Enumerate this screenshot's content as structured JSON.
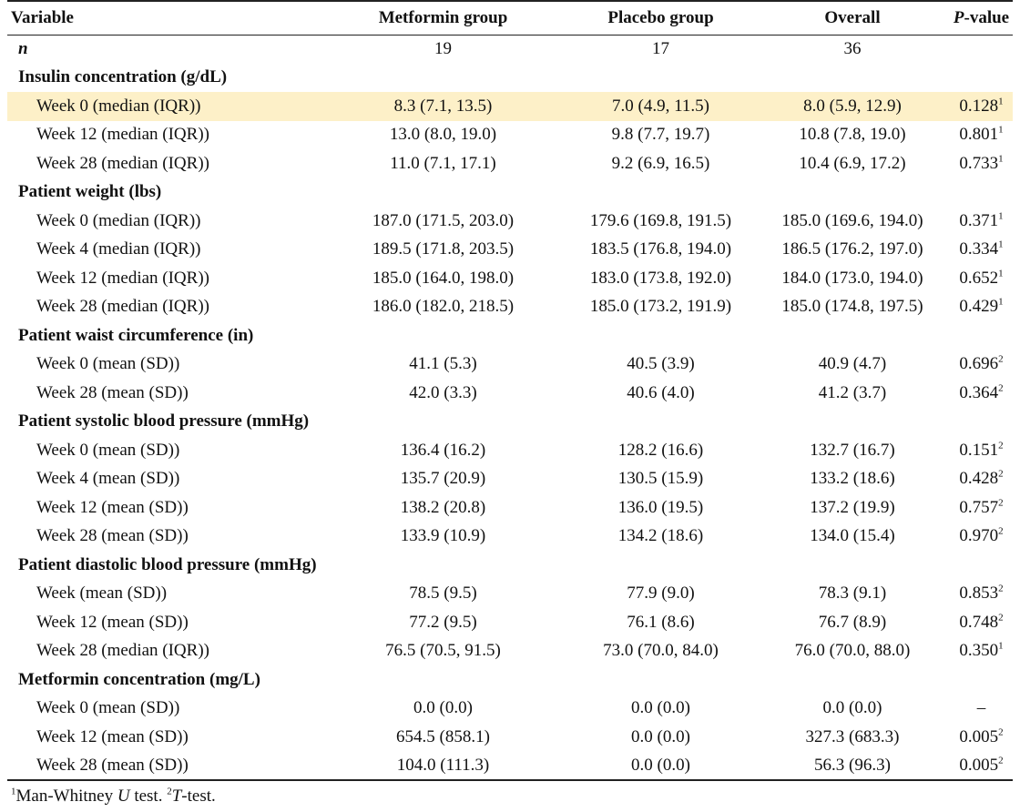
{
  "header": {
    "variable": "Variable",
    "metformin": "Metformin group",
    "placebo": "Placebo group",
    "overall": "Overall",
    "pvalue_italic": "P",
    "pvalue_rest": "-value"
  },
  "rows": [
    {
      "type": "n",
      "label": "n",
      "metformin": "19",
      "placebo": "17",
      "overall": "36",
      "p": "",
      "sup": ""
    },
    {
      "type": "section",
      "label": "Insulin concentration (g/dL)"
    },
    {
      "type": "data",
      "highlight": true,
      "label": "Week 0 (median (IQR))",
      "metformin": "8.3 (7.1, 13.5)",
      "placebo": "7.0 (4.9, 11.5)",
      "overall": "8.0 (5.9, 12.9)",
      "p": "0.128",
      "sup": "1"
    },
    {
      "type": "data",
      "label": "Week 12 (median (IQR))",
      "metformin": "13.0 (8.0, 19.0)",
      "placebo": "9.8 (7.7, 19.7)",
      "overall": "10.8 (7.8, 19.0)",
      "p": "0.801",
      "sup": "1"
    },
    {
      "type": "data",
      "label": "Week 28 (median (IQR))",
      "metformin": "11.0 (7.1, 17.1)",
      "placebo": "9.2 (6.9, 16.5)",
      "overall": "10.4 (6.9, 17.2)",
      "p": "0.733",
      "sup": "1"
    },
    {
      "type": "section",
      "label": "Patient weight (lbs)"
    },
    {
      "type": "data",
      "label": "Week 0 (median (IQR))",
      "metformin": "187.0 (171.5, 203.0)",
      "placebo": "179.6 (169.8, 191.5)",
      "overall": "185.0 (169.6, 194.0)",
      "p": "0.371",
      "sup": "1"
    },
    {
      "type": "data",
      "label": "Week 4 (median (IQR))",
      "metformin": "189.5 (171.8, 203.5)",
      "placebo": "183.5 (176.8, 194.0)",
      "overall": "186.5 (176.2, 197.0)",
      "p": "0.334",
      "sup": "1"
    },
    {
      "type": "data",
      "label": "Week 12 (median (IQR))",
      "metformin": "185.0 (164.0, 198.0)",
      "placebo": "183.0 (173.8, 192.0)",
      "overall": "184.0 (173.0, 194.0)",
      "p": "0.652",
      "sup": "1"
    },
    {
      "type": "data",
      "label": "Week 28 (median (IQR))",
      "metformin": "186.0 (182.0, 218.5)",
      "placebo": "185.0 (173.2, 191.9)",
      "overall": "185.0 (174.8, 197.5)",
      "p": "0.429",
      "sup": "1"
    },
    {
      "type": "section",
      "label": "Patient waist circumference (in)"
    },
    {
      "type": "data",
      "label": "Week 0 (mean (SD))",
      "metformin": "41.1 (5.3)",
      "placebo": "40.5 (3.9)",
      "overall": "40.9 (4.7)",
      "p": "0.696",
      "sup": "2"
    },
    {
      "type": "data",
      "label": "Week 28 (mean (SD))",
      "metformin": "42.0 (3.3)",
      "placebo": "40.6 (4.0)",
      "overall": "41.2 (3.7)",
      "p": "0.364",
      "sup": "2"
    },
    {
      "type": "section",
      "label": "Patient systolic blood pressure (mmHg)"
    },
    {
      "type": "data",
      "label": "Week 0 (mean (SD))",
      "metformin": "136.4 (16.2)",
      "placebo": "128.2 (16.6)",
      "overall": "132.7 (16.7)",
      "p": "0.151",
      "sup": "2"
    },
    {
      "type": "data",
      "label": "Week 4 (mean (SD))",
      "metformin": "135.7 (20.9)",
      "placebo": "130.5 (15.9)",
      "overall": "133.2 (18.6)",
      "p": "0.428",
      "sup": "2"
    },
    {
      "type": "data",
      "label": "Week 12 (mean (SD))",
      "metformin": "138.2 (20.8)",
      "placebo": "136.0 (19.5)",
      "overall": "137.2 (19.9)",
      "p": "0.757",
      "sup": "2"
    },
    {
      "type": "data",
      "label": "Week 28 (mean (SD))",
      "metformin": "133.9 (10.9)",
      "placebo": "134.2 (18.6)",
      "overall": "134.0 (15.4)",
      "p": "0.970",
      "sup": "2"
    },
    {
      "type": "section",
      "label": "Patient diastolic blood pressure (mmHg)"
    },
    {
      "type": "data",
      "label": "Week (mean (SD))",
      "metformin": "78.5 (9.5)",
      "placebo": "77.9 (9.0)",
      "overall": "78.3 (9.1)",
      "p": "0.853",
      "sup": "2"
    },
    {
      "type": "data",
      "label": "Week 12 (mean (SD))",
      "metformin": "77.2 (9.5)",
      "placebo": "76.1 (8.6)",
      "overall": "76.7 (8.9)",
      "p": "0.748",
      "sup": "2"
    },
    {
      "type": "data",
      "label": "Week 28 (median (IQR))",
      "metformin": "76.5 (70.5, 91.5)",
      "placebo": "73.0 (70.0, 84.0)",
      "overall": "76.0 (70.0, 88.0)",
      "p": "0.350",
      "sup": "1"
    },
    {
      "type": "section",
      "label": "Metformin concentration (mg/L)"
    },
    {
      "type": "data",
      "label": "Week 0 (mean (SD))",
      "metformin": "0.0 (0.0)",
      "placebo": "0.0 (0.0)",
      "overall": "0.0 (0.0)",
      "p": "–",
      "sup": ""
    },
    {
      "type": "data",
      "label": "Week 12 (mean (SD))",
      "metformin": "654.5 (858.1)",
      "placebo": "0.0 (0.0)",
      "overall": "327.3 (683.3)",
      "p": "0.005",
      "sup": "2"
    },
    {
      "type": "data",
      "last": true,
      "label": "Week 28 (mean (SD))",
      "metformin": "104.0 (111.3)",
      "placebo": "0.0 (0.0)",
      "overall": "56.3 (96.3)",
      "p": "0.005",
      "sup": "2"
    }
  ],
  "footnote": {
    "sup1": "1",
    "text1a": "Man-Whitney ",
    "text1_italic": "U",
    "text1b": " test. ",
    "sup2": "2",
    "text2_italic": "T",
    "text2b": "-test."
  },
  "colors": {
    "highlight": "#fdf0c8",
    "rule": "#222222"
  }
}
